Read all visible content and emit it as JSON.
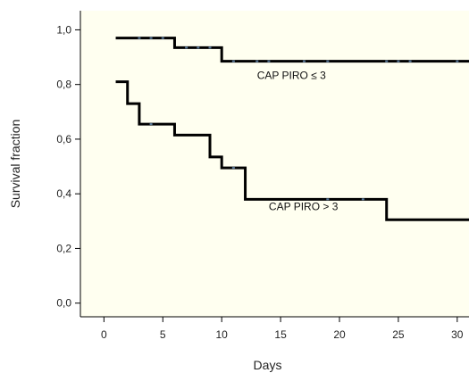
{
  "chart_data": {
    "type": "line",
    "title": "",
    "xlabel": "Days",
    "ylabel": "Survival fraction",
    "xlim": [
      -2,
      31
    ],
    "ylim": [
      -0.05,
      1.07
    ],
    "x_ticks": [
      0,
      5,
      10,
      15,
      20,
      25,
      30
    ],
    "x_tick_labels": [
      "0",
      "5",
      "10",
      "15",
      "20",
      "25",
      "30"
    ],
    "y_ticks": [
      0.0,
      0.2,
      0.4,
      0.6,
      0.8,
      1.0
    ],
    "y_tick_labels": [
      "0,0",
      "0,2",
      "0,4",
      "0,6",
      "0,8",
      "1,0"
    ],
    "grid": false,
    "background_color": "#fffff0",
    "line_color": "#000000",
    "censor_color": "#5a7a9a",
    "series": [
      {
        "name": "CAP PIRO ≤ 3",
        "x": [
          1,
          6,
          10,
          31
        ],
        "y": [
          0.97,
          0.935,
          0.885,
          0.885
        ],
        "censored": [
          {
            "x": 3,
            "y": 0.97
          },
          {
            "x": 4,
            "y": 0.97
          },
          {
            "x": 5,
            "y": 0.97
          },
          {
            "x": 7,
            "y": 0.935
          },
          {
            "x": 8,
            "y": 0.935
          },
          {
            "x": 9,
            "y": 0.935
          },
          {
            "x": 11,
            "y": 0.885
          },
          {
            "x": 13,
            "y": 0.885
          },
          {
            "x": 14,
            "y": 0.885
          },
          {
            "x": 17,
            "y": 0.885
          },
          {
            "x": 19,
            "y": 0.885
          },
          {
            "x": 24,
            "y": 0.885
          },
          {
            "x": 25,
            "y": 0.885
          },
          {
            "x": 26,
            "y": 0.885
          },
          {
            "x": 30,
            "y": 0.885
          }
        ],
        "label_at": {
          "x": 13,
          "y": 0.82
        }
      },
      {
        "name": "CAP PIRO > 3",
        "x": [
          1,
          2,
          3,
          6,
          9,
          10,
          12,
          24,
          31
        ],
        "y": [
          0.81,
          0.73,
          0.655,
          0.615,
          0.535,
          0.495,
          0.38,
          0.305,
          0.305
        ],
        "censored": [
          {
            "x": 4,
            "y": 0.655
          },
          {
            "x": 11,
            "y": 0.495
          },
          {
            "x": 19,
            "y": 0.38
          },
          {
            "x": 22,
            "y": 0.38
          }
        ],
        "label_at": {
          "x": 14,
          "y": 0.34
        }
      }
    ]
  }
}
